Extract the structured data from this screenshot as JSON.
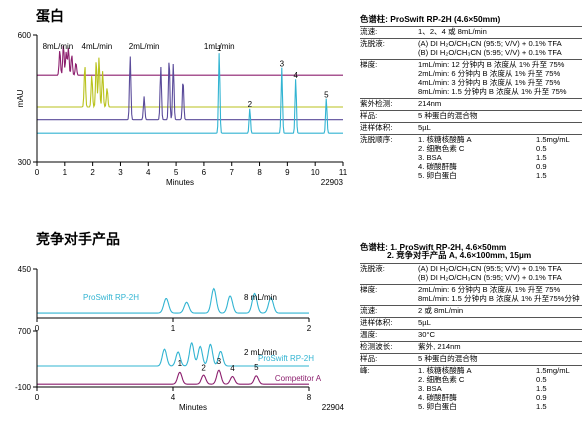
{
  "section1": {
    "title": "蛋白",
    "id": "22903"
  },
  "section2": {
    "title": "竞争对手产品",
    "id": "22904"
  },
  "colors": {
    "cyan": "#32b4d2",
    "purple": "#5a4b9a",
    "olive": "#b9c21c",
    "magenta": "#8c1f6e",
    "grey": "#8a8a8a"
  },
  "chart_data": [
    {
      "type": "line",
      "xlabel": "Minutes",
      "ylabel": "mAU",
      "xlim": [
        0,
        11
      ],
      "ylim": [
        300,
        600
      ],
      "xticks": [
        "0",
        "1",
        "2",
        "3",
        "4",
        "5",
        "6",
        "7",
        "8",
        "9",
        "10",
        "11"
      ],
      "yticks": [
        "300",
        "600"
      ],
      "flow_labels": [
        {
          "text": "8mL/min",
          "x": 0.2
        },
        {
          "text": "4mL/min",
          "x": 1.6
        },
        {
          "text": "2mL/min",
          "x": 3.3
        },
        {
          "text": "1mL/min",
          "x": 6.0
        }
      ],
      "series": [
        {
          "name": "8mL/min",
          "color": "magenta",
          "baseline": 505,
          "peaks": [
            [
              0.82,
              60
            ],
            [
              0.95,
              72
            ],
            [
              1.05,
              55
            ],
            [
              1.13,
              65
            ],
            [
              1.25,
              48
            ],
            [
              1.4,
              30
            ]
          ]
        },
        {
          "name": "4mL/min",
          "color": "olive",
          "baseline": 430,
          "peaks": [
            [
              1.72,
              100
            ],
            [
              1.97,
              75
            ],
            [
              2.13,
              112
            ],
            [
              2.23,
              118
            ],
            [
              2.36,
              85
            ],
            [
              2.52,
              45
            ]
          ]
        },
        {
          "name": "2mL/min",
          "color": "purple",
          "baseline": 400,
          "peaks": [
            [
              3.35,
              150
            ],
            [
              3.85,
              55
            ],
            [
              4.45,
              125
            ],
            [
              4.75,
              145
            ],
            [
              4.9,
              132
            ],
            [
              5.25,
              95
            ]
          ]
        },
        {
          "name": "1mL/min",
          "color": "cyan",
          "baseline": 368,
          "peaks": [
            [
              6.55,
              190
            ],
            [
              7.65,
              58
            ],
            [
              8.8,
              155
            ],
            [
              9.3,
              128
            ],
            [
              10.4,
              82
            ]
          ]
        }
      ],
      "peak_labels": [
        {
          "text": "1",
          "x": 6.55,
          "y": 562
        },
        {
          "text": "2",
          "x": 7.65,
          "y": 430
        },
        {
          "text": "3",
          "x": 8.8,
          "y": 526
        },
        {
          "text": "4",
          "x": 9.3,
          "y": 498
        },
        {
          "text": "5",
          "x": 10.4,
          "y": 452
        }
      ]
    },
    {
      "type": "line",
      "xlim": [
        0,
        2
      ],
      "ylim": [
        -50,
        450
      ],
      "xticks": [
        "0",
        "1",
        "2"
      ],
      "yticks": [
        "450"
      ],
      "series_label": "ProSwift RP-2H",
      "flow_label": "8 mL/min",
      "series": [
        {
          "name": "ProSwift RP-2H",
          "color": "cyan",
          "baseline": 0,
          "peaks": [
            [
              0.95,
              150
            ],
            [
              1.1,
              110
            ],
            [
              1.3,
              250
            ],
            [
              1.42,
              175
            ],
            [
              1.6,
              200
            ],
            [
              1.72,
              155
            ]
          ]
        }
      ]
    },
    {
      "type": "line",
      "xlabel": "Minutes",
      "xlim": [
        0,
        8
      ],
      "ylim": [
        -100,
        700
      ],
      "xticks": [
        "0",
        "4",
        "8"
      ],
      "yticks": [
        "700",
        "-100"
      ],
      "flow_label": "2 mL/min",
      "legend": [
        {
          "text": "ProSwift RP-2H",
          "color": "cyan"
        },
        {
          "text": "Competitor A",
          "color": "magenta"
        }
      ],
      "series": [
        {
          "name": "ProSwift RP-2H",
          "color": "cyan",
          "baseline": 200,
          "peaks": [
            [
              3.75,
              240
            ],
            [
              4.15,
              200
            ],
            [
              4.55,
              330
            ],
            [
              4.8,
              280
            ],
            [
              5.1,
              310
            ],
            [
              5.4,
              210
            ]
          ]
        },
        {
          "name": "Competitor A",
          "color": "magenta",
          "baseline": -60,
          "peaks": [
            [
              4.2,
              170
            ],
            [
              4.9,
              130
            ],
            [
              5.35,
              200
            ],
            [
              5.75,
              110
            ],
            [
              6.45,
              120
            ]
          ]
        }
      ],
      "peak_labels": [
        {
          "text": "1",
          "x": 4.2,
          "y": 200
        },
        {
          "text": "2",
          "x": 4.9,
          "y": 135
        },
        {
          "text": "3",
          "x": 5.35,
          "y": 228
        },
        {
          "text": "4",
          "x": 5.75,
          "y": 128
        },
        {
          "text": "5",
          "x": 6.45,
          "y": 140
        }
      ]
    }
  ],
  "panel1": {
    "head": "色谱柱: ProSwift RP-2H (4.6×50mm)",
    "rows": [
      {
        "k": "流速:",
        "v": [
          "1、2、4 或 8mL/min"
        ]
      },
      {
        "k": "洗脱液:",
        "v": [
          "(A) DI H₂O/CH₃CN (95:5; V/V) + 0.1% TFA",
          "(B) DI H₂O/CH₃CN (5:95; V/V) + 0.1% TFA"
        ]
      },
      {
        "k": "梯度:",
        "v": [
          "1mL/min: 12 分钟内 B 浓度从 1% 升至 75%",
          "2mL/min: 6 分钟内 B 浓度从 1% 升至 75%",
          "4mL/min: 3 分钟内 B 浓度从 1% 升至 75%",
          "8mL/min: 1.5 分钟内 B 浓度从 1% 升至 75%"
        ]
      },
      {
        "k": "紫外检测:",
        "v": [
          "214nm"
        ]
      },
      {
        "k": "样品:",
        "v": [
          "5 种蛋白的混合物"
        ]
      },
      {
        "k": "进样体积:",
        "v": [
          "5µL"
        ]
      }
    ],
    "order_key": "洗脱顺序:",
    "order": [
      {
        "n": "1. 核糖核酸酶 A",
        "c": "1.5mg/mL"
      },
      {
        "n": "2. 细胞色素 C",
        "c": "0.5"
      },
      {
        "n": "3. BSA",
        "c": "1.5"
      },
      {
        "n": "4. 碳酸酐酶",
        "c": "0.9"
      },
      {
        "n": "5. 卵白蛋白",
        "c": "1.5"
      }
    ]
  },
  "panel2": {
    "head1": "色谱柱: 1. ProSwift RP-2H, 4.6×50mm",
    "head2": "2. 竞争对手产品 A, 4.6×100mm, 15µm",
    "rows": [
      {
        "k": "洗脱液:",
        "v": [
          "(A) DI H₂O/CH₃CN (95:5; V/V) + 0.1% TFA",
          "(B) DI H₂O/CH₃CN (5:95; V/V) + 0.1% TFA"
        ]
      },
      {
        "k": "梯度:",
        "v": [
          "2mL/min: 6 分钟内 B 浓度从 1% 升至 75%",
          "8mL/min: 1.5 分钟内 B 浓度从 1% 升至75%分钟"
        ]
      },
      {
        "k": "流速:",
        "v": [
          "2 或 8mL/min"
        ]
      },
      {
        "k": "进样体积:",
        "v": [
          "5µL"
        ]
      },
      {
        "k": "温度:",
        "v": [
          "30°C"
        ]
      },
      {
        "k": "检测波长:",
        "v": [
          "紫外, 214nm"
        ]
      },
      {
        "k": "样品:",
        "v": [
          "5 种蛋白的混合物"
        ]
      }
    ],
    "order_key": "峰:",
    "order": [
      {
        "n": "1. 核糖核酸酶 A",
        "c": "1.5mg/mL"
      },
      {
        "n": "2. 细胞色素 C",
        "c": "0.5"
      },
      {
        "n": "3. BSA",
        "c": "1.5"
      },
      {
        "n": "4. 碳酸酐酶",
        "c": "0.9"
      },
      {
        "n": "5. 卵白蛋白",
        "c": "1.5"
      }
    ]
  }
}
